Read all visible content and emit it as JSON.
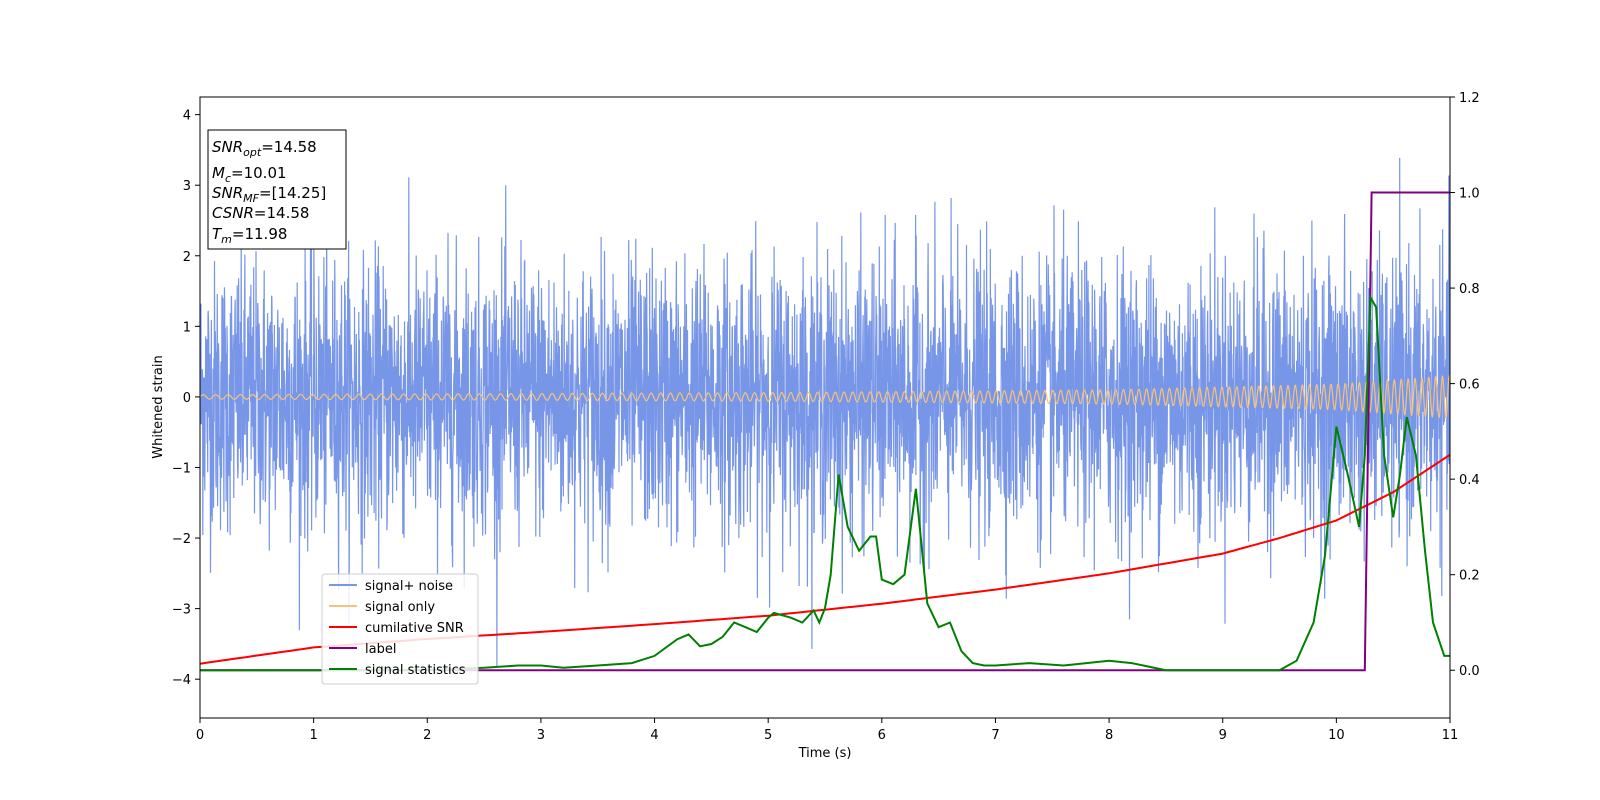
{
  "chart_data": {
    "type": "line",
    "xlabel": "Time (s)",
    "ylabel": "Whitened strain",
    "xlim": [
      0,
      11
    ],
    "ylim": [
      -4.55,
      4.25
    ],
    "y2lim": [
      -0.1,
      1.2
    ],
    "x_ticks": [
      "0",
      "1",
      "2",
      "3",
      "4",
      "5",
      "6",
      "7",
      "8",
      "9",
      "10",
      "11"
    ],
    "y_ticks": [
      "4",
      "3",
      "2",
      "1",
      "0",
      "−1",
      "−2",
      "−3",
      "−4"
    ],
    "y2_ticks": [
      "1.2",
      "1.0",
      "0.8",
      "0.6",
      "0.4",
      "0.2",
      "0.0"
    ],
    "grid": false,
    "legend_position": "lower-left",
    "legend": [
      "signal+ noise",
      "signal only",
      "cumilative SNR",
      "label",
      "signal statistics"
    ],
    "info_box": {
      "snr_opt": {
        "main": "SNR",
        "sub": "opt",
        "value": "=14.58"
      },
      "mc": {
        "main": "M",
        "sub": "c",
        "value": "=10.01"
      },
      "snr_mf": {
        "main": "SNR",
        "sub": "MF",
        "value": "=[14.25]"
      },
      "csnr": {
        "main": "CSNR",
        "sub": "",
        "value": "=14.58"
      },
      "tm": {
        "main": "T",
        "sub": "m",
        "value": "=11.98"
      }
    },
    "series": [
      {
        "name": "signal+ noise",
        "axis": "left",
        "color": "#7896e8",
        "description": "whitened noisy strain, approx. std 1, range -4.2..3.6"
      },
      {
        "name": "signal only",
        "axis": "left",
        "color": "#f5c27a",
        "amplitude_x": [
          0,
          5,
          8,
          10,
          11
        ],
        "amplitude_y": [
          0.03,
          0.06,
          0.1,
          0.18,
          0.3
        ]
      },
      {
        "name": "cumilative SNR",
        "axis": "left",
        "color": "#ff0000",
        "x": [
          0,
          1,
          2,
          3,
          4,
          5,
          6,
          7,
          8,
          9,
          9.5,
          10,
          10.5,
          11
        ],
        "y": [
          -3.78,
          -3.55,
          -3.43,
          -3.33,
          -3.22,
          -3.1,
          -2.93,
          -2.73,
          -2.5,
          -2.22,
          -2.0,
          -1.75,
          -1.35,
          -0.82
        ]
      },
      {
        "name": "label",
        "axis": "right",
        "color": "#800080",
        "x": [
          0,
          10.25,
          10.31,
          11
        ],
        "y": [
          0,
          0,
          1,
          1
        ]
      },
      {
        "name": "signal statistics",
        "axis": "right",
        "color": "#008000",
        "x": [
          0,
          2.0,
          2.5,
          2.8,
          3.0,
          3.2,
          3.5,
          3.8,
          4.0,
          4.2,
          4.3,
          4.4,
          4.5,
          4.6,
          4.7,
          4.8,
          4.9,
          5.0,
          5.05,
          5.2,
          5.3,
          5.4,
          5.45,
          5.5,
          5.55,
          5.62,
          5.7,
          5.8,
          5.9,
          5.95,
          6.0,
          6.1,
          6.2,
          6.3,
          6.35,
          6.4,
          6.5,
          6.6,
          6.7,
          6.8,
          6.9,
          7.0,
          7.3,
          7.6,
          8.0,
          8.2,
          8.5,
          9.0,
          9.5,
          9.65,
          9.8,
          9.9,
          10.0,
          10.1,
          10.2,
          10.25,
          10.3,
          10.35,
          10.42,
          10.5,
          10.56,
          10.62,
          10.7,
          10.78,
          10.85,
          10.95,
          11.0
        ],
        "y": [
          0.0,
          0.0,
          0.005,
          0.01,
          0.01,
          0.005,
          0.01,
          0.015,
          0.03,
          0.065,
          0.075,
          0.05,
          0.055,
          0.07,
          0.1,
          0.09,
          0.08,
          0.11,
          0.12,
          0.11,
          0.1,
          0.125,
          0.1,
          0.13,
          0.2,
          0.41,
          0.3,
          0.25,
          0.28,
          0.28,
          0.19,
          0.18,
          0.2,
          0.38,
          0.26,
          0.14,
          0.09,
          0.1,
          0.04,
          0.015,
          0.01,
          0.01,
          0.015,
          0.01,
          0.02,
          0.015,
          0.0,
          0.0,
          0.0,
          0.02,
          0.1,
          0.24,
          0.51,
          0.41,
          0.3,
          0.45,
          0.78,
          0.76,
          0.45,
          0.32,
          0.41,
          0.53,
          0.45,
          0.25,
          0.1,
          0.03,
          0.03
        ]
      }
    ]
  }
}
